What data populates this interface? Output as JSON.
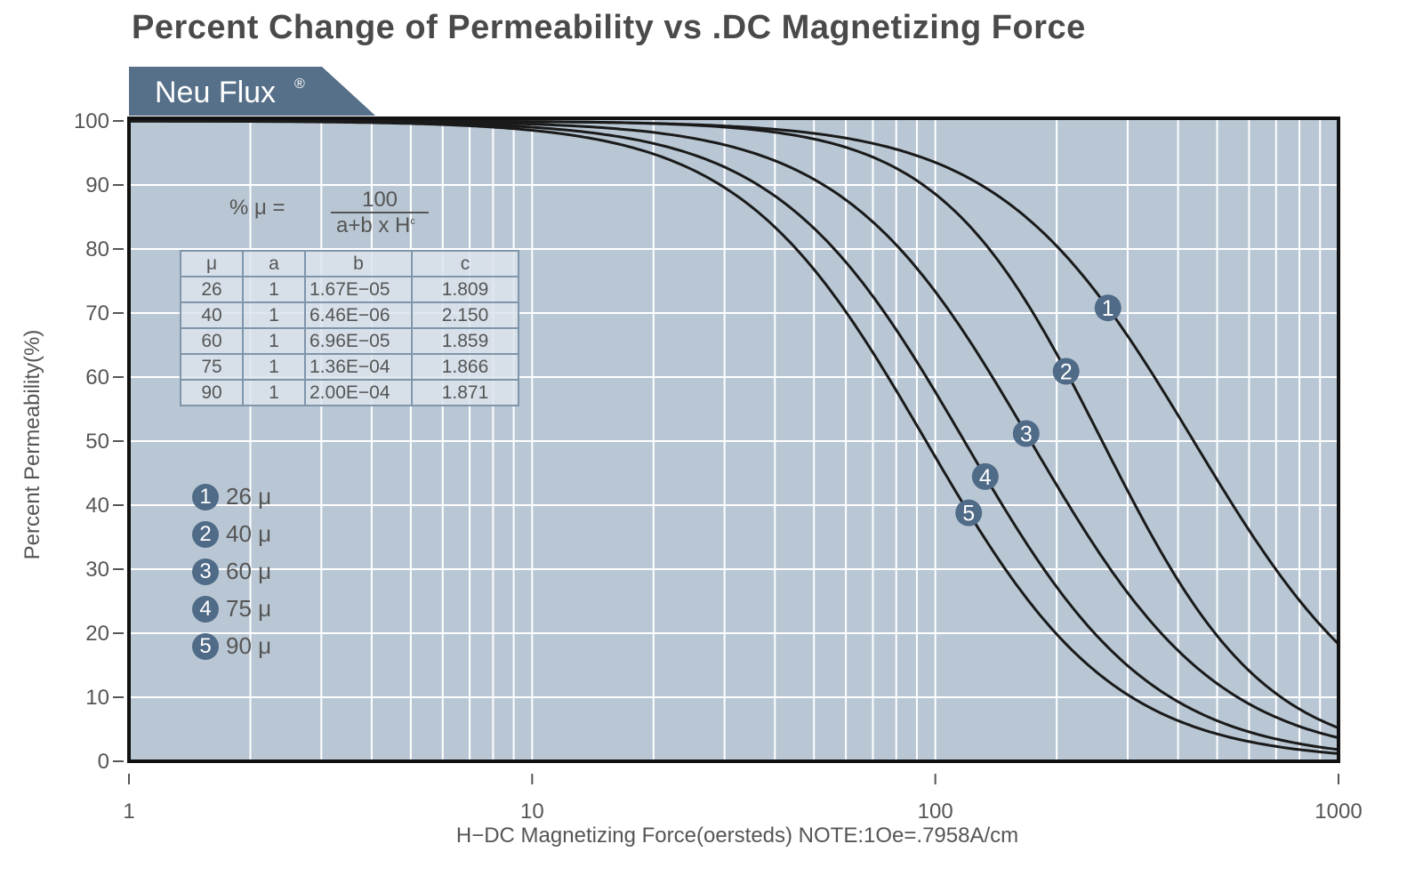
{
  "title": "Percent Change of Permeability vs .DC Magnetizing Force",
  "brand": {
    "name": "Neu Flux",
    "mark": "®"
  },
  "colors": {
    "plot_bg": "#b9c7d4",
    "grid": "#ffffff",
    "tab": "#567089",
    "curve": "#1a1a1a",
    "marker": "#4f6b87"
  },
  "formula": {
    "lhs": "% μ =",
    "numerator": "100",
    "denominator": "a+b x H",
    "exponent": "c"
  },
  "coef_table": {
    "headers": [
      "μ",
      "a",
      "b",
      "c"
    ],
    "rows": [
      [
        "26",
        "1",
        "1.67E−05",
        "1.809"
      ],
      [
        "40",
        "1",
        "6.46E−06",
        "2.150"
      ],
      [
        "60",
        "1",
        "6.96E−05",
        "1.859"
      ],
      [
        "75",
        "1",
        "1.36E−04",
        "1.866"
      ],
      [
        "90",
        "1",
        "2.00E−04",
        "1.871"
      ]
    ]
  },
  "chart_data": {
    "type": "line",
    "title": "Percent Change of Permeability vs .DC Magnetizing Force",
    "xlabel": "H−DC Magnetizing Force(oersteds) NOTE:1Oe=.7958A/cm",
    "ylabel": "Percent Permeability(%)",
    "xscale": "log",
    "xlim": [
      1,
      1000
    ],
    "ylim": [
      0,
      100
    ],
    "xticks": [
      "1",
      "10",
      "100",
      "1000"
    ],
    "yticks": [
      "0",
      "10",
      "20",
      "30",
      "40",
      "50",
      "60",
      "70",
      "80",
      "90",
      "100"
    ],
    "grid": true,
    "legend_placement": "left",
    "series": [
      {
        "name": "26 μ",
        "marker": "1",
        "a": 1,
        "b": 1.67e-05,
        "c": 1.809,
        "marker_x": 268
      },
      {
        "name": "40 μ",
        "marker": "2",
        "a": 1,
        "b": 6.46e-06,
        "c": 2.15,
        "marker_x": 211
      },
      {
        "name": "60 μ",
        "marker": "3",
        "a": 1,
        "b": 6.96e-05,
        "c": 1.859,
        "marker_x": 168
      },
      {
        "name": "75 μ",
        "marker": "4",
        "a": 1,
        "b": 0.000136,
        "c": 1.866,
        "marker_x": 133
      },
      {
        "name": "90 μ",
        "marker": "5",
        "a": 1,
        "b": 0.0002,
        "c": 1.871,
        "marker_x": 121
      }
    ]
  }
}
